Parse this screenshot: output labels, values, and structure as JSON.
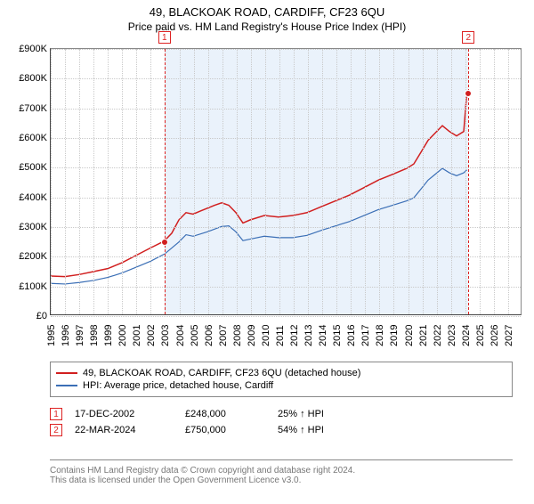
{
  "title": "49, BLACKOAK ROAD, CARDIFF, CF23 6QU",
  "subtitle": "Price paid vs. HM Land Registry's House Price Index (HPI)",
  "chart": {
    "type": "line",
    "background_color": "#ffffff",
    "grid_color": "#c9c9c9",
    "ylim": [
      0,
      900
    ],
    "ytick_step": 100,
    "yprefix": "£",
    "ysuffix": "K",
    "xlim": [
      1995,
      2028
    ],
    "xticks": [
      1995,
      1996,
      1997,
      1998,
      1999,
      2000,
      2001,
      2002,
      2003,
      2004,
      2005,
      2006,
      2007,
      2008,
      2009,
      2010,
      2011,
      2012,
      2013,
      2014,
      2015,
      2016,
      2017,
      2018,
      2019,
      2020,
      2021,
      2022,
      2023,
      2024,
      2025,
      2026,
      2027
    ],
    "shade_from": 2002.96,
    "shade_to": 2024.22,
    "shade_color": "#eaf2fb",
    "series": [
      {
        "name": "49, BLACKOAK ROAD, CARDIFF, CF23 6QU (detached house)",
        "color": "#d11f1f",
        "width": 1.5,
        "data": [
          [
            1995,
            130
          ],
          [
            1996,
            128
          ],
          [
            1997,
            135
          ],
          [
            1998,
            145
          ],
          [
            1999,
            155
          ],
          [
            2000,
            175
          ],
          [
            2001,
            200
          ],
          [
            2002,
            225
          ],
          [
            2002.96,
            248
          ],
          [
            2003.5,
            275
          ],
          [
            2004,
            320
          ],
          [
            2004.5,
            345
          ],
          [
            2005,
            340
          ],
          [
            2005.5,
            350
          ],
          [
            2006,
            360
          ],
          [
            2006.5,
            370
          ],
          [
            2007,
            378
          ],
          [
            2007.5,
            370
          ],
          [
            2008,
            345
          ],
          [
            2008.5,
            310
          ],
          [
            2009,
            320
          ],
          [
            2010,
            335
          ],
          [
            2011,
            330
          ],
          [
            2012,
            335
          ],
          [
            2013,
            345
          ],
          [
            2014,
            365
          ],
          [
            2015,
            385
          ],
          [
            2016,
            405
          ],
          [
            2017,
            430
          ],
          [
            2018,
            455
          ],
          [
            2019,
            475
          ],
          [
            2020,
            495
          ],
          [
            2020.5,
            510
          ],
          [
            2021,
            550
          ],
          [
            2021.5,
            590
          ],
          [
            2022,
            615
          ],
          [
            2022.5,
            640
          ],
          [
            2023,
            620
          ],
          [
            2023.5,
            605
          ],
          [
            2024,
            620
          ],
          [
            2024.22,
            750
          ]
        ]
      },
      {
        "name": "HPI: Average price, detached house, Cardiff",
        "color": "#3b6fb6",
        "width": 1.2,
        "data": [
          [
            1995,
            105
          ],
          [
            1996,
            103
          ],
          [
            1997,
            108
          ],
          [
            1998,
            115
          ],
          [
            1999,
            125
          ],
          [
            2000,
            140
          ],
          [
            2001,
            160
          ],
          [
            2002,
            180
          ],
          [
            2003,
            205
          ],
          [
            2004,
            245
          ],
          [
            2004.5,
            270
          ],
          [
            2005,
            265
          ],
          [
            2006,
            280
          ],
          [
            2007,
            298
          ],
          [
            2007.5,
            300
          ],
          [
            2008,
            280
          ],
          [
            2008.5,
            250
          ],
          [
            2009,
            255
          ],
          [
            2010,
            265
          ],
          [
            2011,
            260
          ],
          [
            2012,
            260
          ],
          [
            2013,
            268
          ],
          [
            2014,
            285
          ],
          [
            2015,
            300
          ],
          [
            2016,
            315
          ],
          [
            2017,
            335
          ],
          [
            2018,
            355
          ],
          [
            2019,
            370
          ],
          [
            2020,
            385
          ],
          [
            2020.5,
            395
          ],
          [
            2021,
            425
          ],
          [
            2021.5,
            455
          ],
          [
            2022,
            475
          ],
          [
            2022.5,
            495
          ],
          [
            2023,
            480
          ],
          [
            2023.5,
            470
          ],
          [
            2024,
            480
          ],
          [
            2024.22,
            490
          ]
        ]
      }
    ],
    "markers": [
      {
        "id": "1",
        "x": 2002.96,
        "y": 248,
        "color": "#d11f1f"
      },
      {
        "id": "2",
        "x": 2024.22,
        "y": 750,
        "color": "#d11f1f"
      }
    ]
  },
  "legend": {
    "items": [
      {
        "color": "#d11f1f",
        "label": "49, BLACKOAK ROAD, CARDIFF, CF23 6QU (detached house)"
      },
      {
        "color": "#3b6fb6",
        "label": "HPI: Average price, detached house, Cardiff"
      }
    ]
  },
  "transactions": [
    {
      "id": "1",
      "date": "17-DEC-2002",
      "price": "£248,000",
      "pct": "25% ↑ HPI"
    },
    {
      "id": "2",
      "date": "22-MAR-2024",
      "price": "£750,000",
      "pct": "54% ↑ HPI"
    }
  ],
  "footer": {
    "line1": "Contains HM Land Registry data © Crown copyright and database right 2024.",
    "line2": "This data is licensed under the Open Government Licence v3.0."
  }
}
